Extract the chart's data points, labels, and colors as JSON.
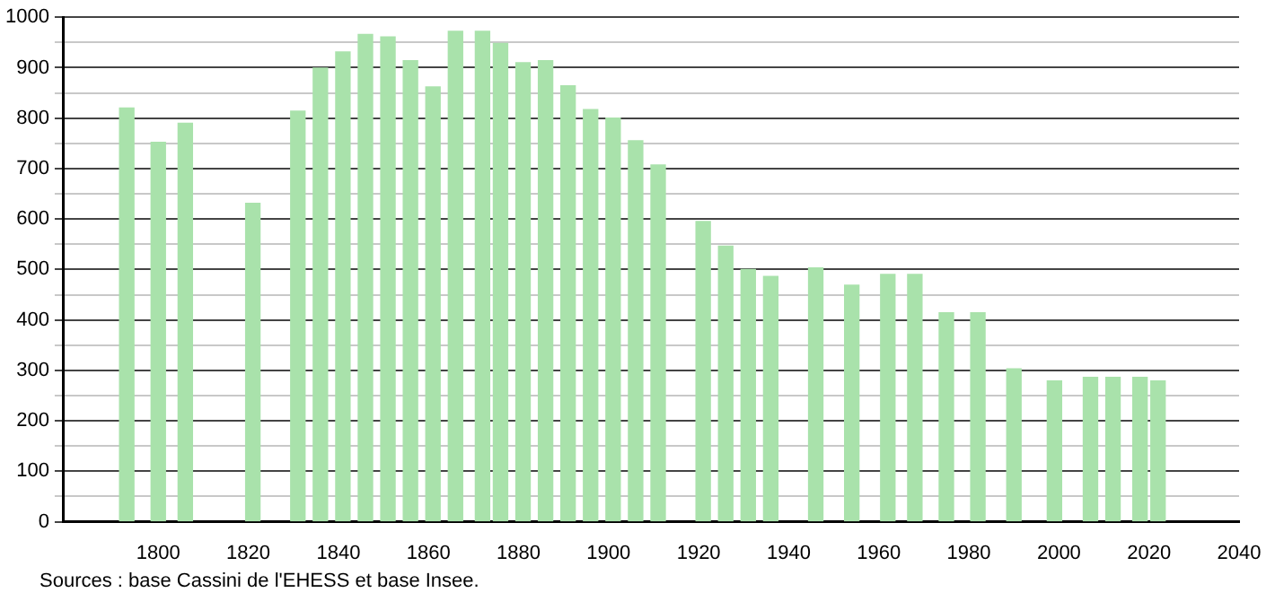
{
  "chart_data": {
    "type": "bar",
    "x": [
      1793,
      1800,
      1806,
      1821,
      1831,
      1836,
      1841,
      1846,
      1851,
      1856,
      1861,
      1866,
      1872,
      1876,
      1881,
      1886,
      1891,
      1896,
      1901,
      1906,
      1911,
      1921,
      1926,
      1931,
      1936,
      1946,
      1954,
      1962,
      1968,
      1975,
      1982,
      1990,
      1999,
      2007,
      2012,
      2018,
      2022
    ],
    "values": [
      820,
      752,
      790,
      631,
      814,
      899,
      931,
      966,
      961,
      914,
      862,
      972,
      972,
      948,
      910,
      914,
      864,
      817,
      800,
      755,
      707,
      595,
      546,
      500,
      486,
      503,
      469,
      490,
      490,
      414,
      414,
      303,
      279,
      286,
      286,
      286,
      279
    ],
    "color": "#a9e2ab",
    "xlim": [
      1779,
      2040
    ],
    "xticks": [
      1800,
      1820,
      1840,
      1860,
      1880,
      1900,
      1920,
      1940,
      1960,
      1980,
      2000,
      2020,
      2040
    ],
    "ylim": [
      0,
      1000
    ],
    "yticks": [
      0,
      {
        "value": 50,
        "label": null
      },
      100,
      {
        "value": 150,
        "label": null
      },
      200,
      {
        "value": 250,
        "label": null
      },
      300,
      {
        "value": 350,
        "label": null
      },
      400,
      {
        "value": 450,
        "label": null
      },
      500,
      {
        "value": 550,
        "label": null
      },
      600,
      {
        "value": 650,
        "label": null
      },
      700,
      {
        "value": 750,
        "label": null
      },
      800,
      {
        "value": 850,
        "label": null
      },
      900,
      {
        "value": 950,
        "label": null
      },
      1000
    ],
    "grid": "y",
    "legend": false,
    "annotations": [
      "Sources : base Cassini de l'EHESS et base Insee."
    ]
  }
}
